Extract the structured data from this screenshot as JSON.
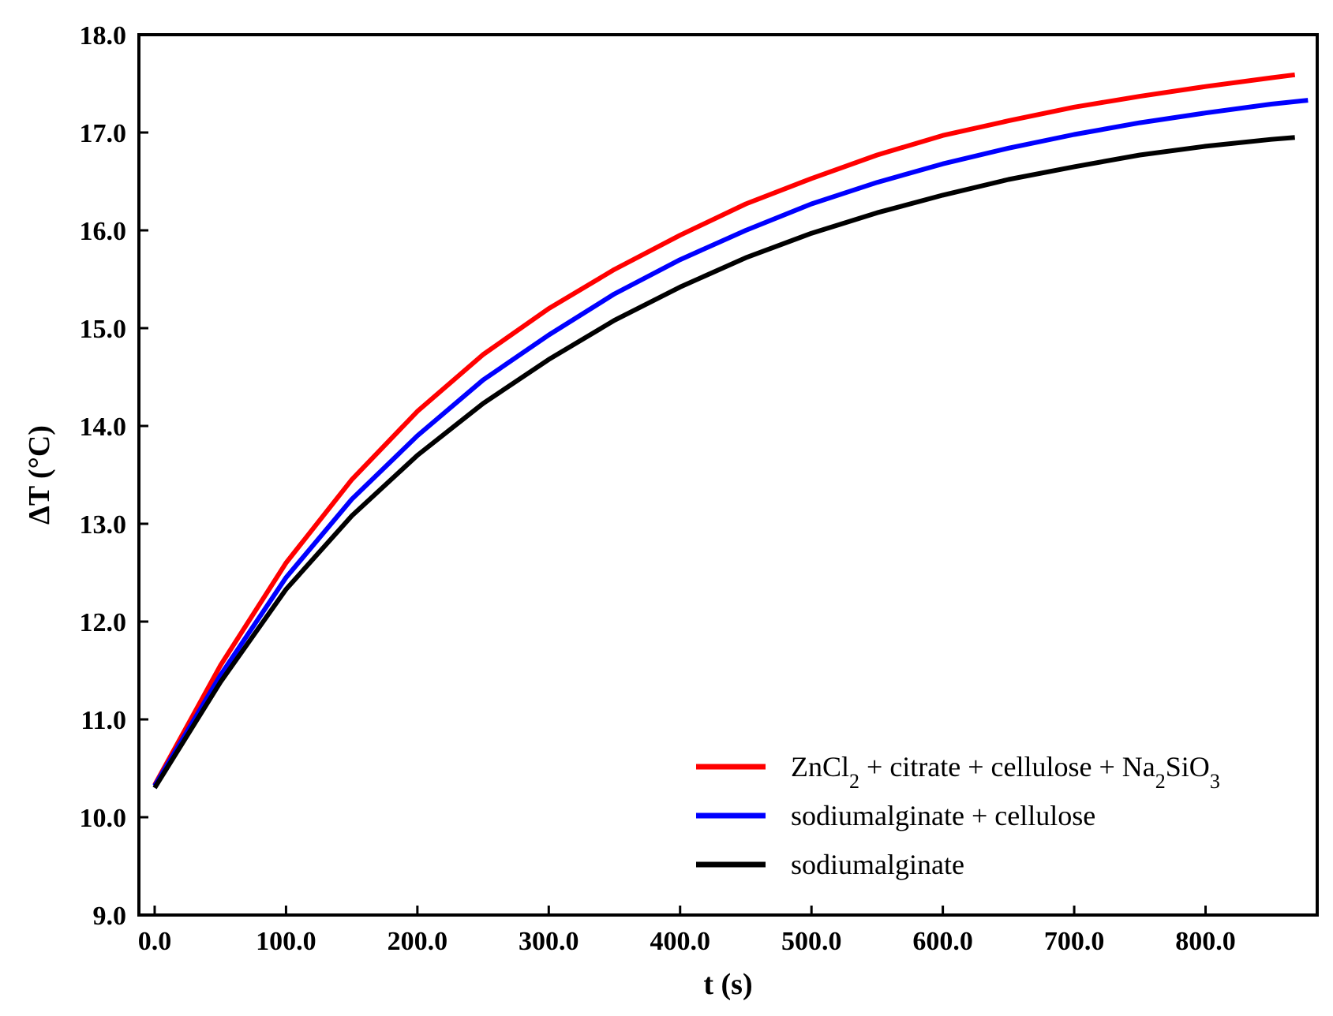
{
  "chart_data": {
    "type": "line",
    "xlabel": "t (s)",
    "ylabel": "ΔT (°C)",
    "xlim": [
      -12,
      885
    ],
    "ylim": [
      9.0,
      18.0
    ],
    "x_ticks": [
      0,
      100,
      200,
      300,
      400,
      500,
      600,
      700,
      800
    ],
    "x_tick_labels": [
      "0.0",
      "100.0",
      "200.0",
      "300.0",
      "400.0",
      "500.0",
      "600.0",
      "700.0",
      "800.0"
    ],
    "y_ticks": [
      9,
      10,
      11,
      12,
      13,
      14,
      15,
      16,
      17,
      18
    ],
    "y_tick_labels": [
      "9.0",
      "10.0",
      "11.0",
      "12.0",
      "13.0",
      "14.0",
      "15.0",
      "16.0",
      "17.0",
      "18.0"
    ],
    "grid": false,
    "legend_position": "bottom-right",
    "x": [
      0,
      50,
      100,
      150,
      200,
      250,
      300,
      350,
      400,
      450,
      500,
      550,
      600,
      650,
      700,
      750,
      800,
      850,
      868,
      878
    ],
    "series": [
      {
        "name": "ZnCl2 + citrate + cellulose + Na2SiO3",
        "color": "#ff0000",
        "x": [
          0,
          50,
          100,
          150,
          200,
          250,
          300,
          350,
          400,
          450,
          500,
          550,
          600,
          650,
          700,
          750,
          800,
          850,
          868
        ],
        "values": [
          10.33,
          11.55,
          12.6,
          13.45,
          14.15,
          14.73,
          15.2,
          15.6,
          15.95,
          16.27,
          16.53,
          16.77,
          16.97,
          17.12,
          17.26,
          17.37,
          17.47,
          17.56,
          17.59
        ]
      },
      {
        "name": "sodiumalginate + cellulose",
        "color": "#0000ff",
        "x": [
          0,
          50,
          100,
          150,
          200,
          250,
          300,
          350,
          400,
          450,
          500,
          550,
          600,
          650,
          700,
          750,
          800,
          850,
          878
        ],
        "values": [
          10.32,
          11.45,
          12.45,
          13.25,
          13.9,
          14.47,
          14.93,
          15.35,
          15.7,
          16.0,
          16.27,
          16.49,
          16.68,
          16.84,
          16.98,
          17.1,
          17.2,
          17.29,
          17.33
        ]
      },
      {
        "name": "sodiumalginate",
        "color": "#000000",
        "x": [
          0,
          50,
          100,
          150,
          200,
          250,
          300,
          350,
          400,
          450,
          500,
          550,
          600,
          650,
          700,
          750,
          800,
          850,
          868
        ],
        "values": [
          10.3,
          11.38,
          12.33,
          13.08,
          13.7,
          14.23,
          14.68,
          15.08,
          15.42,
          15.72,
          15.97,
          16.18,
          16.36,
          16.52,
          16.65,
          16.77,
          16.86,
          16.93,
          16.95
        ]
      }
    ]
  }
}
